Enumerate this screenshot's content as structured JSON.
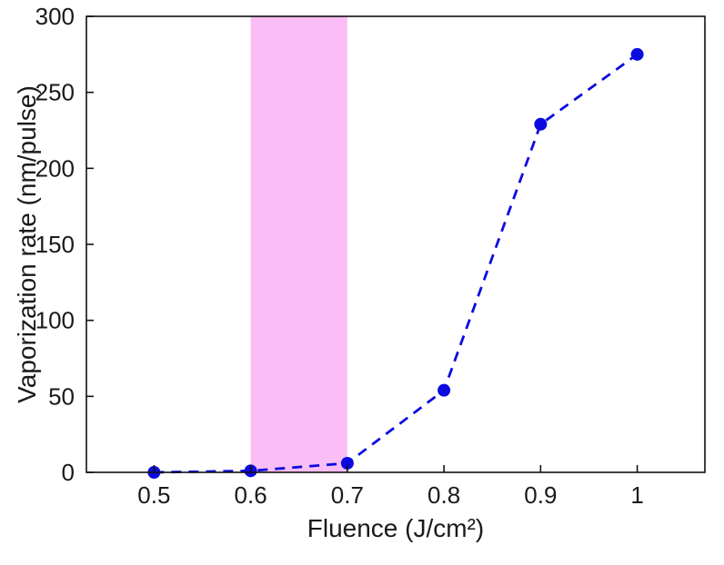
{
  "chart_data": {
    "type": "line",
    "title": "",
    "x": [
      0.5,
      0.6,
      0.7,
      0.8,
      0.9,
      1.0
    ],
    "y": [
      0,
      1,
      6,
      54,
      229,
      275
    ],
    "xlabel": "Fluence (J/cm²)",
    "ylabel": "Vaporization rate (nm/pulse)",
    "xlim": [
      0.43,
      1.07
    ],
    "ylim": [
      0,
      300
    ],
    "xticks": [
      0.5,
      0.6,
      0.7,
      0.8,
      0.9,
      1
    ],
    "xtick_labels": [
      "0.5",
      "0.6",
      "0.7",
      "0.8",
      "0.9",
      "1"
    ],
    "yticks": [
      0,
      50,
      100,
      150,
      200,
      250,
      300
    ],
    "ytick_labels": [
      "0",
      "50",
      "100",
      "150",
      "200",
      "250",
      "300"
    ],
    "grid": false,
    "legend": null,
    "line_style": "dashed",
    "marker": "circle",
    "line_color": "#0b0be0",
    "marker_color": "#0b0be0",
    "axis_color": "#111111",
    "band": {
      "x0": 0.6,
      "x1": 0.7,
      "color": "#f233e0",
      "opacity": 0.32
    },
    "background": "#ffffff"
  }
}
